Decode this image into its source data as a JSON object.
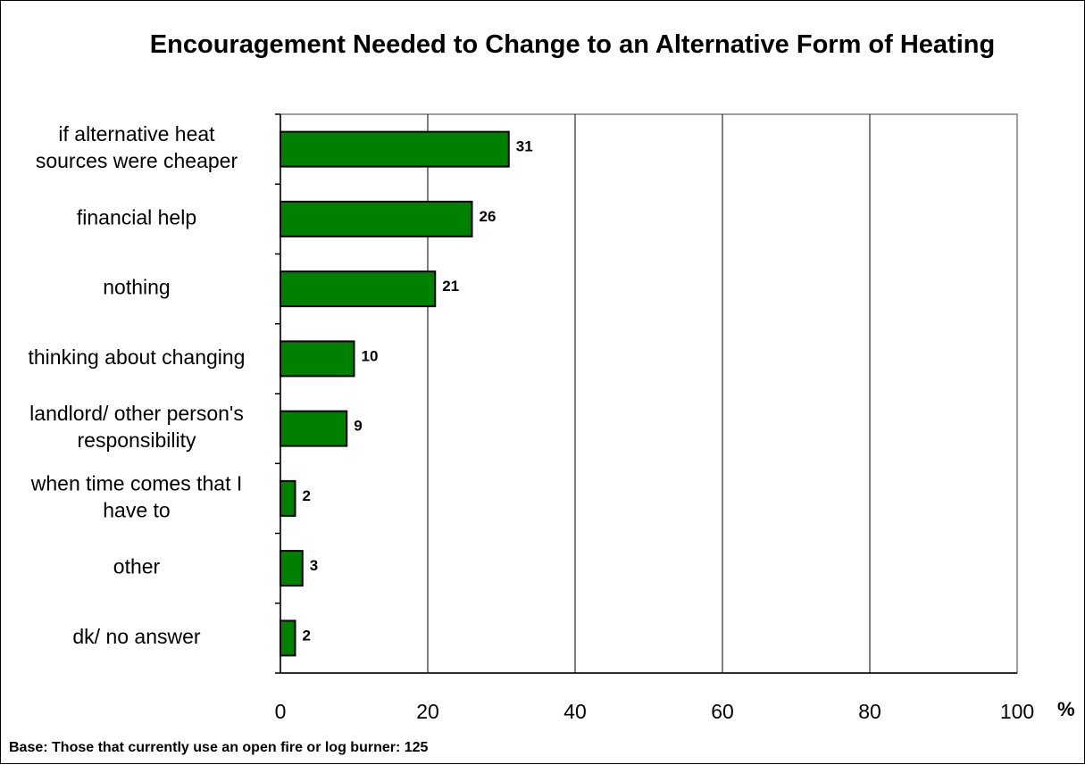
{
  "chart_data": {
    "type": "bar",
    "orientation": "horizontal",
    "title": "Encouragement Needed to Change to an Alternative Form of Heating",
    "categories": [
      "if alternative heat sources were cheaper",
      "financial help",
      "nothing",
      "thinking about changing",
      "landlord/ other person's responsibility",
      "when time comes that I have to",
      "other",
      "dk/ no answer"
    ],
    "category_lines": [
      [
        "if alternative heat",
        "sources were cheaper"
      ],
      [
        "financial help"
      ],
      [
        "nothing"
      ],
      [
        "thinking about changing"
      ],
      [
        "landlord/ other person's",
        "responsibility"
      ],
      [
        "when time comes that I",
        "have to"
      ],
      [
        "other"
      ],
      [
        "dk/ no answer"
      ]
    ],
    "values": [
      31,
      26,
      21,
      10,
      9,
      2,
      3,
      2
    ],
    "data_labels": [
      "31",
      "26",
      "21",
      "10",
      "9",
      "2",
      "3",
      "2"
    ],
    "xlim": [
      0,
      100
    ],
    "xticks": [
      "0",
      "20",
      "40",
      "60",
      "80",
      "100"
    ],
    "xlabel": "%",
    "ylabel": "",
    "grid": "vertical",
    "legend": "none",
    "bar_color": "#008000",
    "footnote": "Base: Those that currently use an open fire or log burner: 125"
  }
}
